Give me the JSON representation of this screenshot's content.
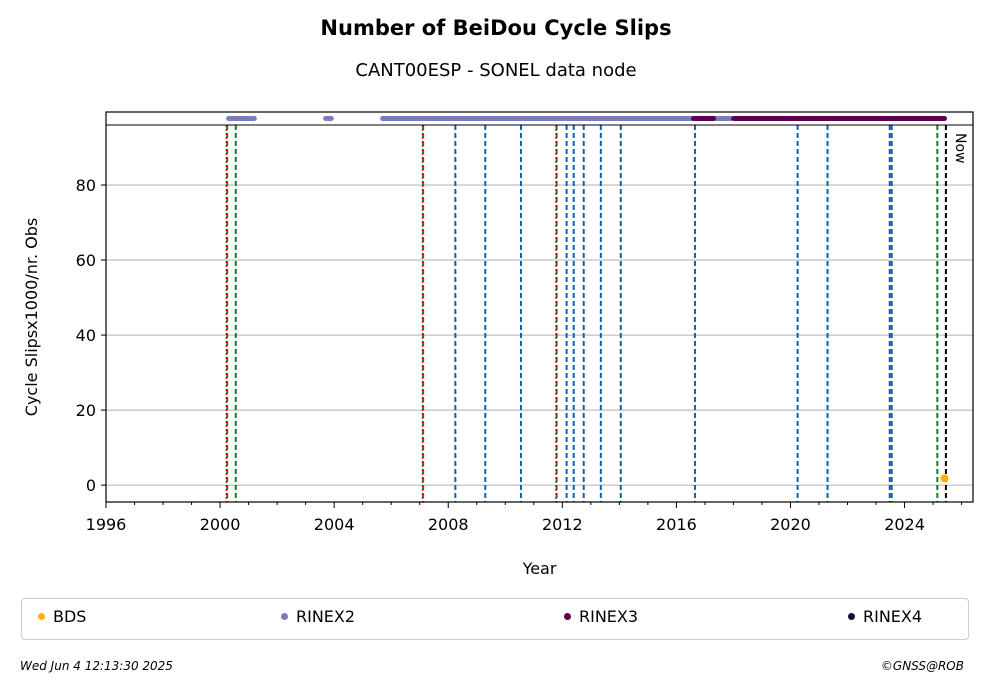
{
  "header": {
    "title": "Number of BeiDou Cycle Slips",
    "subtitle": "CANT00ESP - SONEL data node"
  },
  "footer": {
    "timestamp": "Wed Jun  4 12:13:30 2025",
    "copyright": "©GNSS@ROB"
  },
  "legend": [
    {
      "label": "BDS",
      "color": "#FFB000"
    },
    {
      "label": "RINEX2",
      "color": "#7B7BBE"
    },
    {
      "label": "RINEX3",
      "color": "#5C0052"
    },
    {
      "label": "RINEX4",
      "color": "#1A0A2A"
    }
  ],
  "chart_data": {
    "type": "scatter",
    "xlabel": "Year",
    "ylabel": "Cycle Slipsx1000/nr. Obs",
    "xlim": [
      1996,
      2026.4
    ],
    "ylim": [
      -4.5,
      96
    ],
    "xticks": [
      1996,
      2000,
      2004,
      2008,
      2012,
      2016,
      2020,
      2024
    ],
    "yticks": [
      0,
      20,
      40,
      60,
      80
    ],
    "grid": "horizontal",
    "legend_position": "bottom",
    "series": [
      {
        "name": "BDS",
        "color": "#FFB000",
        "points": [
          [
            2025.4,
            1.8
          ]
        ]
      }
    ],
    "availability_bars": [
      {
        "name": "RINEX2",
        "color": "#7B7BBE",
        "ranges": [
          [
            2000.3,
            2001.2
          ],
          [
            2003.7,
            2003.9
          ],
          [
            2005.7,
            2017.9
          ]
        ]
      },
      {
        "name": "RINEX3",
        "color": "#5C0052",
        "ranges": [
          [
            2016.6,
            2017.3
          ],
          [
            2018.0,
            2025.4
          ]
        ]
      }
    ],
    "event_lines": {
      "blue_dashed": [
        2008.25,
        2009.3,
        2010.55,
        2012.15,
        2012.4,
        2012.75,
        2013.35,
        2014.05,
        2016.65,
        2020.25,
        2021.3,
        2023.48,
        2023.55
      ],
      "green_dashed": [
        2000.25,
        2000.55,
        2007.12,
        2011.8,
        2025.15
      ],
      "red_dotted": [
        2000.22,
        2007.1,
        2011.78
      ],
      "now": 2025.45
    },
    "now_label": "Now"
  }
}
